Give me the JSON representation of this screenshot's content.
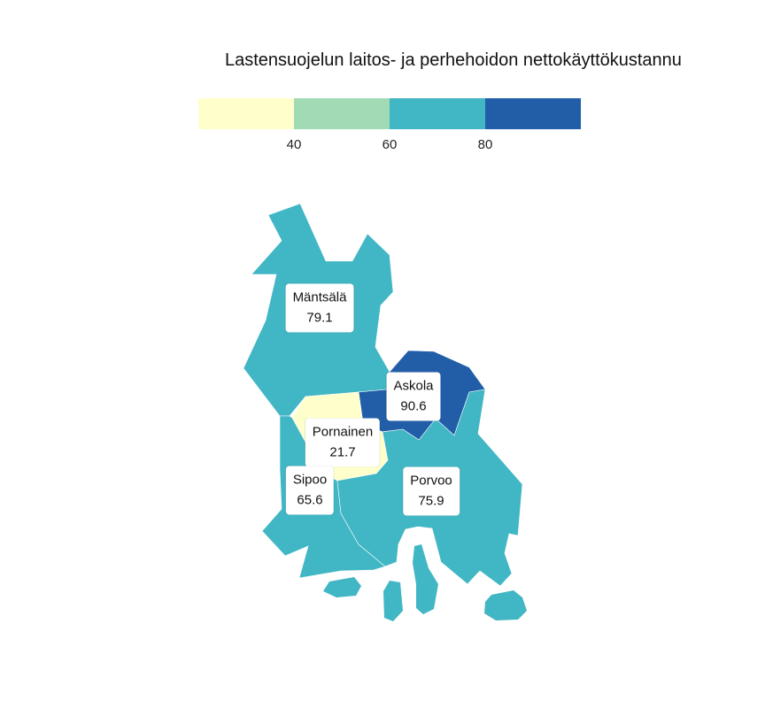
{
  "title": "Lastensuojelun laitos- ja perhehoidon nettokäyttökustannu",
  "legend": {
    "colors": [
      "#ffffcc",
      "#a1dab4",
      "#41b6c4",
      "#225ea8"
    ],
    "ticks": [
      "40",
      "60",
      "80"
    ]
  },
  "regions": [
    {
      "name": "Mäntsälä",
      "value": "79.1"
    },
    {
      "name": "Askola",
      "value": "90.6"
    },
    {
      "name": "Pornainen",
      "value": "21.7"
    },
    {
      "name": "Sipoo",
      "value": "65.6"
    },
    {
      "name": "Porvoo",
      "value": "75.9"
    }
  ]
}
